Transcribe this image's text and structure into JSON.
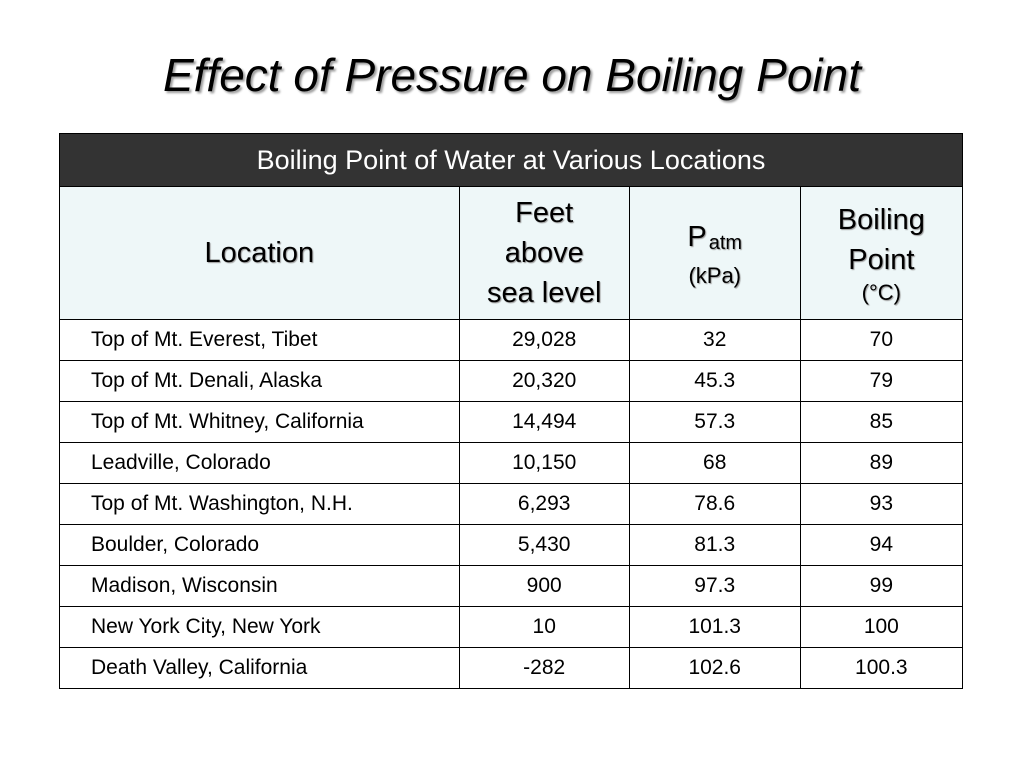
{
  "slide": {
    "title": "Effect of Pressure on Boiling Point"
  },
  "table": {
    "caption": "Boiling Point of Water at Various Locations",
    "headers": {
      "location": "Location",
      "feet_line1": "Feet",
      "feet_line2": "above",
      "feet_line3": "sea level",
      "pressure_symbol": "P",
      "pressure_subscript": "atm",
      "pressure_unit": "(kPa)",
      "boiling_line1": "Boiling",
      "boiling_line2": "Point",
      "boiling_unit": "(°C)"
    },
    "rows": [
      {
        "location": "Top of Mt. Everest, Tibet",
        "feet": "29,028",
        "patm": "32",
        "bp": "70"
      },
      {
        "location": "Top of Mt. Denali, Alaska",
        "feet": "20,320",
        "patm": "45.3",
        "bp": "79"
      },
      {
        "location": "Top of Mt. Whitney, California",
        "feet": "14,494",
        "patm": "57.3",
        "bp": "85"
      },
      {
        "location": "Leadville, Colorado",
        "feet": "10,150",
        "patm": "68",
        "bp": "89"
      },
      {
        "location": "Top of Mt. Washington, N.H.",
        "feet": "6,293",
        "patm": "78.6",
        "bp": "93"
      },
      {
        "location": "Boulder, Colorado",
        "feet": "5,430",
        "patm": "81.3",
        "bp": "94"
      },
      {
        "location": "Madison, Wisconsin",
        "feet": "900",
        "patm": "97.3",
        "bp": "99"
      },
      {
        "location": "New York City, New York",
        "feet": "10",
        "patm": "101.3",
        "bp": "100"
      },
      {
        "location": "Death Valley, California",
        "feet": "-282",
        "patm": "102.6",
        "bp": "100.3"
      }
    ]
  }
}
